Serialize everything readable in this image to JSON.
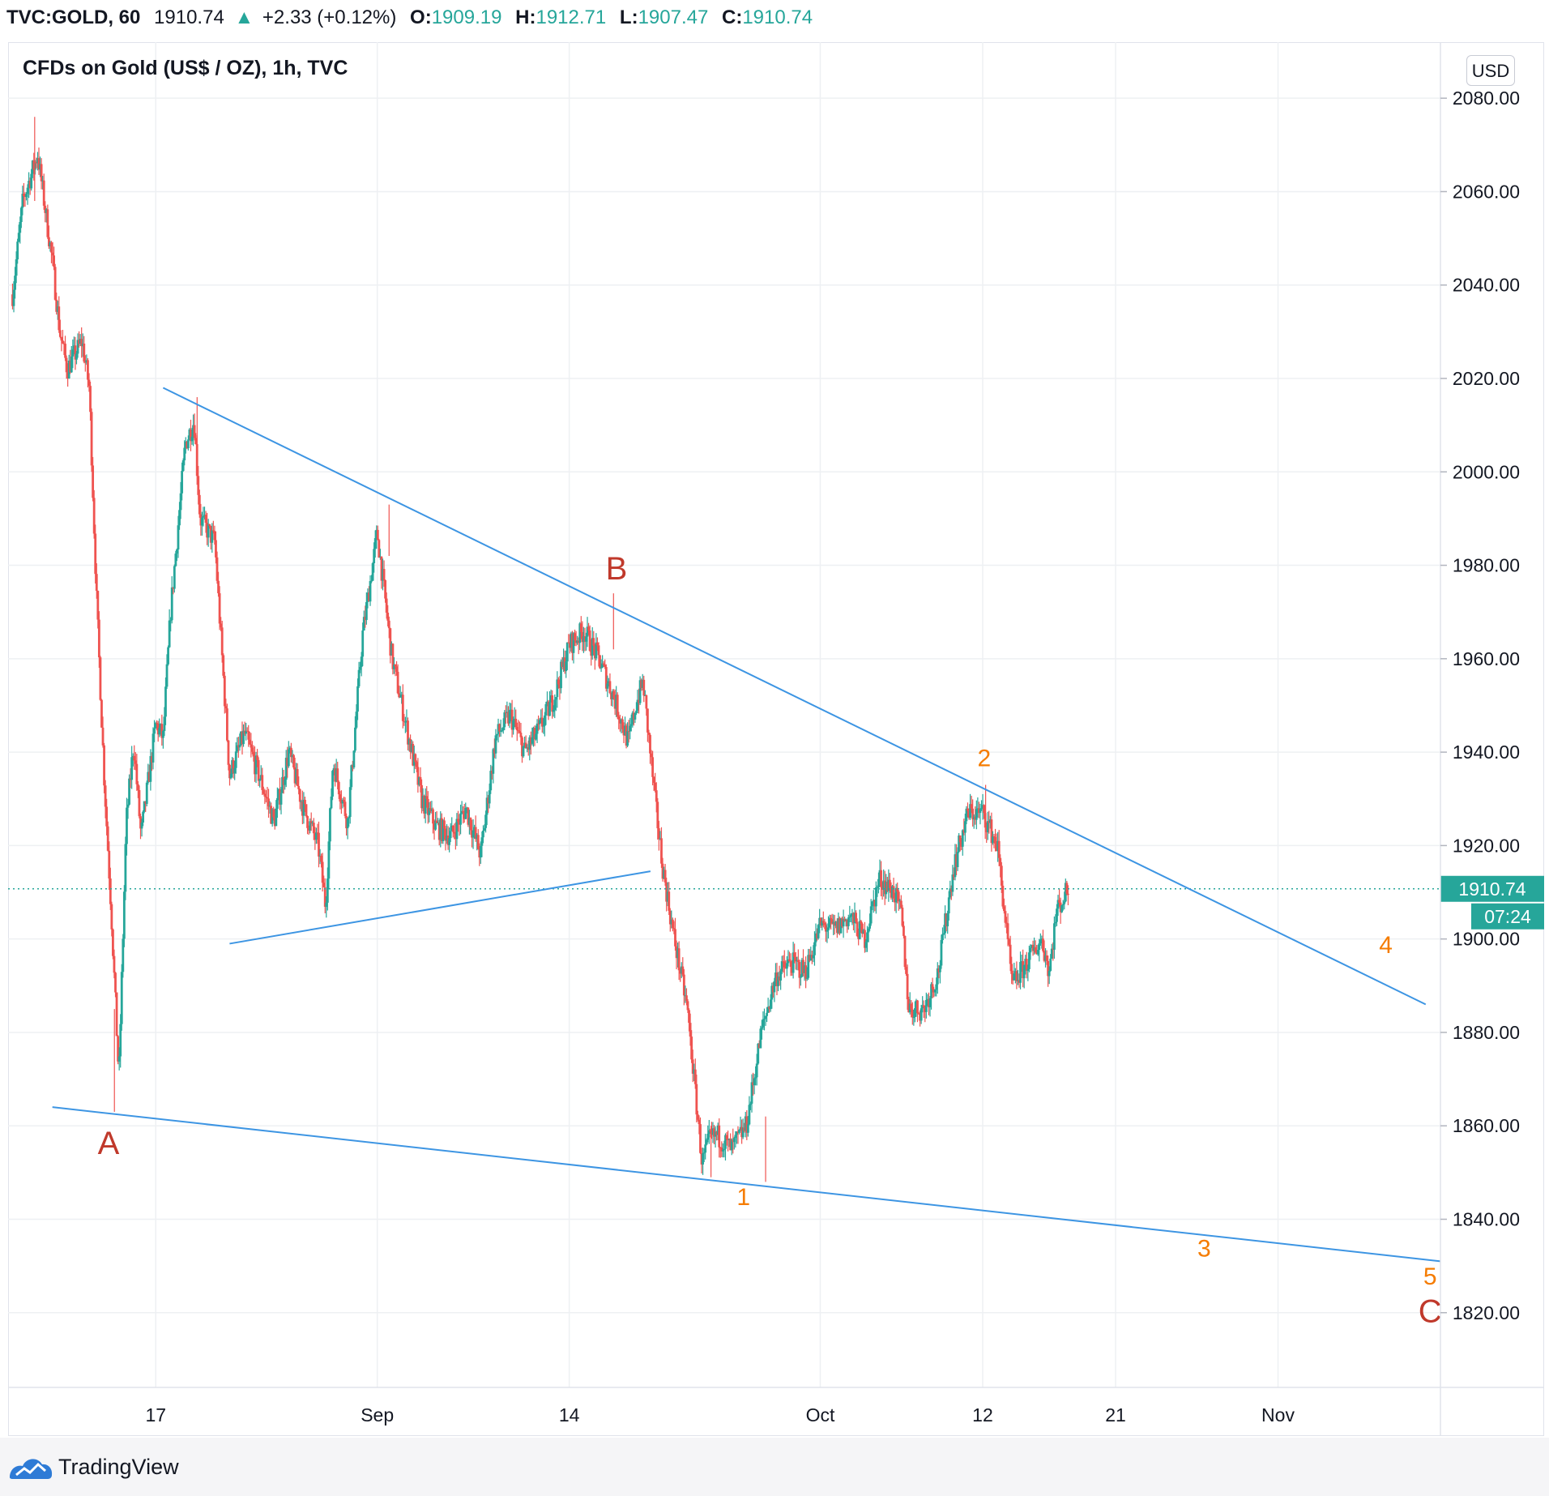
{
  "header": {
    "symbol": "TVC:GOLD, 60",
    "last": "1910.74",
    "change_arrow": "▲",
    "change": "+2.33 (+0.12%)",
    "open_label": "O:",
    "open": "1909.19",
    "high_label": "H:",
    "high": "1912.71",
    "low_label": "L:",
    "low": "1907.47",
    "close_label": "C:",
    "close": "1910.74"
  },
  "chart_title": "CFDs on Gold (US$ / OZ), 1h, TVC",
  "currency": "USD",
  "brand": "TradingView",
  "price_tag": {
    "price": "1910.74",
    "countdown": "07:24"
  },
  "chart_data": {
    "type": "line",
    "instrument": "TVC:GOLD",
    "interval": "60",
    "ylim": [
      1804,
      2092
    ],
    "yticks": [
      "2080.00",
      "2060.00",
      "2040.00",
      "2020.00",
      "2000.00",
      "1980.00",
      "1960.00",
      "1940.00",
      "1920.00",
      "1900.00",
      "1880.00",
      "1860.00",
      "1840.00",
      "1820.00"
    ],
    "ytick_values": [
      2080,
      2060,
      2040,
      2020,
      2000,
      1980,
      1960,
      1940,
      1920,
      1900,
      1880,
      1860,
      1840,
      1820
    ],
    "xticks": [
      {
        "label": "17",
        "day": 17
      },
      {
        "label": "Sep",
        "day": 32
      },
      {
        "label": "14",
        "day": 45
      },
      {
        "label": "Oct",
        "day": 62
      },
      {
        "label": "12",
        "day": 73
      },
      {
        "label": "21",
        "day": 82
      },
      {
        "label": "Nov",
        "day": 93
      }
    ],
    "xlim": [
      7,
      104
    ],
    "grid": true,
    "series": [
      {
        "points": [
          [
            7.3,
            2038
          ],
          [
            8,
            2058
          ],
          [
            9,
            2068
          ],
          [
            10,
            2045
          ],
          [
            10.5,
            2030
          ],
          [
            11,
            2022
          ],
          [
            12,
            2028
          ],
          [
            12.5,
            2018
          ],
          [
            13,
            1972
          ],
          [
            13.5,
            1935
          ],
          [
            14,
            1905
          ],
          [
            14.5,
            1870
          ],
          [
            15,
            1925
          ],
          [
            15.5,
            1942
          ],
          [
            16,
            1922
          ],
          [
            17,
            1946
          ],
          [
            17.5,
            1943
          ],
          [
            18,
            1970
          ],
          [
            19,
            2006
          ],
          [
            19.6,
            2011
          ],
          [
            20,
            1990
          ],
          [
            21,
            1985
          ],
          [
            22,
            1935
          ],
          [
            23,
            1944
          ],
          [
            24,
            1935
          ],
          [
            25,
            1925
          ],
          [
            26,
            1940
          ],
          [
            27,
            1928
          ],
          [
            28,
            1920
          ],
          [
            28.5,
            1907
          ],
          [
            29,
            1938
          ],
          [
            30,
            1925
          ],
          [
            31,
            1965
          ],
          [
            32,
            1987
          ],
          [
            33,
            1960
          ],
          [
            34,
            1945
          ],
          [
            35,
            1930
          ],
          [
            36,
            1924
          ],
          [
            37,
            1922
          ],
          [
            38,
            1928
          ],
          [
            39,
            1918
          ],
          [
            40,
            1943
          ],
          [
            41,
            1948
          ],
          [
            42,
            1940
          ],
          [
            43,
            1945
          ],
          [
            44,
            1952
          ],
          [
            45,
            1963
          ],
          [
            46,
            1966
          ],
          [
            47,
            1960
          ],
          [
            48,
            1952
          ],
          [
            49,
            1942
          ],
          [
            49.5,
            1950
          ],
          [
            50,
            1955
          ],
          [
            50.8,
            1930
          ],
          [
            51.3,
            1916
          ],
          [
            52,
            1902
          ],
          [
            53,
            1885
          ],
          [
            54,
            1852
          ],
          [
            54.5,
            1857
          ],
          [
            55,
            1858
          ],
          [
            56,
            1855
          ],
          [
            57,
            1860
          ],
          [
            58,
            1880
          ],
          [
            59,
            1892
          ],
          [
            60,
            1895
          ],
          [
            61,
            1893
          ],
          [
            62,
            1903
          ],
          [
            63,
            1902
          ],
          [
            64,
            1905
          ],
          [
            65,
            1900
          ],
          [
            66,
            1913
          ],
          [
            67,
            1910
          ],
          [
            67.5,
            1905
          ],
          [
            68,
            1885
          ],
          [
            69,
            1885
          ],
          [
            70,
            1893
          ],
          [
            71,
            1915
          ],
          [
            72,
            1927
          ],
          [
            73,
            1927
          ],
          [
            74,
            1920
          ],
          [
            74.5,
            1905
          ],
          [
            75,
            1890
          ],
          [
            76,
            1895
          ],
          [
            77,
            1900
          ],
          [
            77.5,
            1893
          ],
          [
            78,
            1906
          ],
          [
            78.8,
            1910.74
          ]
        ]
      }
    ],
    "last_price": 1910.74,
    "trendlines": [
      {
        "from": [
          17.5,
          2018
        ],
        "to": [
          103,
          1886
        ]
      },
      {
        "from": [
          22,
          1899
        ],
        "to": [
          50.5,
          1914.5
        ]
      },
      {
        "from": [
          10,
          1864
        ],
        "to": [
          104,
          1831
        ]
      }
    ],
    "annotations": [
      {
        "label": "A",
        "x": 13.8,
        "y": 1854,
        "color": "#c0392b"
      },
      {
        "label": "B",
        "x": 48.2,
        "y": 1977,
        "color": "#c0392b"
      },
      {
        "label": "1",
        "x": 56.8,
        "y": 1843,
        "color": "#f57c00"
      },
      {
        "label": "2",
        "x": 73.1,
        "y": 1937,
        "color": "#f57c00"
      },
      {
        "label": "3",
        "x": 88,
        "y": 1832,
        "color": "#f57c00"
      },
      {
        "label": "4",
        "x": 100.3,
        "y": 1897,
        "color": "#f57c00"
      },
      {
        "label": "5",
        "x": 103.3,
        "y": 1826,
        "color": "#f57c00"
      },
      {
        "label": "C",
        "x": 103.3,
        "y": 1818,
        "color": "#c0392b"
      }
    ]
  },
  "colors": {
    "up": "#26a69a",
    "down": "#ef5350",
    "trendline": "#3d95e3",
    "grid": "#eef0f3",
    "price_tag": "#26a69a"
  }
}
